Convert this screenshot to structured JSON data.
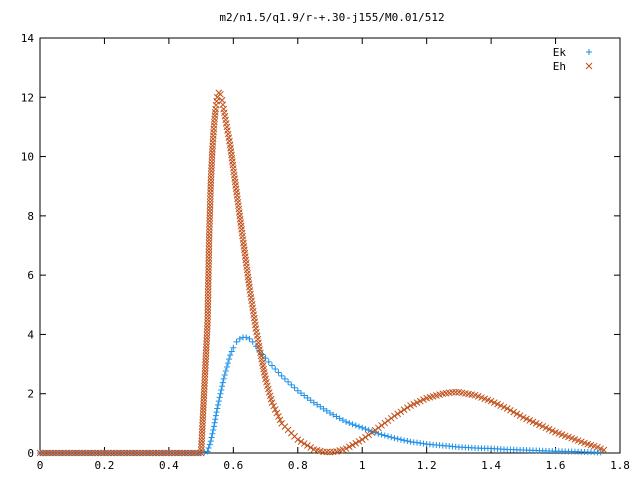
{
  "chart_data": {
    "type": "scatter",
    "title": "m2/n1.5/q1.9/r-+.30-j155/M0.01/512",
    "xlabel": "",
    "ylabel": "",
    "xlim": [
      0,
      1.8
    ],
    "ylim": [
      0,
      14
    ],
    "xticks": [
      0,
      0.2,
      0.4,
      0.6,
      0.8,
      1,
      1.2,
      1.4,
      1.6,
      1.8
    ],
    "xtick_labels": [
      "0",
      "0.2",
      "0.4",
      "0.6",
      "0.8",
      "1",
      "1.2",
      "1.4",
      "1.6",
      "1.8"
    ],
    "yticks": [
      0,
      2,
      4,
      6,
      8,
      10,
      12,
      14
    ],
    "ytick_labels": [
      "0",
      "2",
      "4",
      "6",
      "8",
      "10",
      "12",
      "14"
    ],
    "grid": false,
    "legend_position": "top-right",
    "series": [
      {
        "name": "Ek",
        "marker": "+",
        "color": "#1e90e8",
        "points": [
          [
            0.0,
            0
          ],
          [
            0.05,
            0
          ],
          [
            0.1,
            0
          ],
          [
            0.15,
            0
          ],
          [
            0.2,
            0
          ],
          [
            0.25,
            0
          ],
          [
            0.3,
            0
          ],
          [
            0.35,
            0
          ],
          [
            0.4,
            0
          ],
          [
            0.45,
            0
          ],
          [
            0.5,
            0
          ],
          [
            0.52,
            0.05
          ],
          [
            0.53,
            0.4
          ],
          [
            0.54,
            0.9
          ],
          [
            0.55,
            1.5
          ],
          [
            0.56,
            2.0
          ],
          [
            0.57,
            2.5
          ],
          [
            0.58,
            2.9
          ],
          [
            0.59,
            3.3
          ],
          [
            0.6,
            3.55
          ],
          [
            0.61,
            3.75
          ],
          [
            0.62,
            3.85
          ],
          [
            0.63,
            3.9
          ],
          [
            0.64,
            3.9
          ],
          [
            0.65,
            3.85
          ],
          [
            0.66,
            3.75
          ],
          [
            0.67,
            3.6
          ],
          [
            0.68,
            3.45
          ],
          [
            0.7,
            3.2
          ],
          [
            0.72,
            2.95
          ],
          [
            0.75,
            2.6
          ],
          [
            0.8,
            2.1
          ],
          [
            0.85,
            1.7
          ],
          [
            0.9,
            1.35
          ],
          [
            0.95,
            1.05
          ],
          [
            1.0,
            0.85
          ],
          [
            1.05,
            0.65
          ],
          [
            1.1,
            0.5
          ],
          [
            1.15,
            0.38
          ],
          [
            1.2,
            0.3
          ],
          [
            1.25,
            0.25
          ],
          [
            1.3,
            0.2
          ],
          [
            1.35,
            0.17
          ],
          [
            1.4,
            0.15
          ],
          [
            1.45,
            0.12
          ],
          [
            1.5,
            0.1
          ],
          [
            1.55,
            0.08
          ],
          [
            1.6,
            0.06
          ],
          [
            1.65,
            0.05
          ],
          [
            1.7,
            0.03
          ],
          [
            1.74,
            0.02
          ]
        ]
      },
      {
        "name": "Eh",
        "marker": "x",
        "color": "#c0501a",
        "points": [
          [
            0.0,
            0
          ],
          [
            0.05,
            0
          ],
          [
            0.1,
            0
          ],
          [
            0.15,
            0
          ],
          [
            0.2,
            0
          ],
          [
            0.25,
            0
          ],
          [
            0.3,
            0
          ],
          [
            0.35,
            0
          ],
          [
            0.4,
            0
          ],
          [
            0.45,
            0
          ],
          [
            0.5,
            0
          ],
          [
            0.52,
            4.4
          ],
          [
            0.525,
            7.3
          ],
          [
            0.53,
            9.1
          ],
          [
            0.535,
            10.25
          ],
          [
            0.54,
            11.05
          ],
          [
            0.545,
            11.6
          ],
          [
            0.55,
            12.0
          ],
          [
            0.555,
            12.15
          ],
          [
            0.56,
            12.1
          ],
          [
            0.565,
            11.9
          ],
          [
            0.57,
            11.6
          ],
          [
            0.58,
            11.0
          ],
          [
            0.59,
            10.4
          ],
          [
            0.6,
            9.6
          ],
          [
            0.61,
            8.8
          ],
          [
            0.62,
            8.0
          ],
          [
            0.63,
            7.2
          ],
          [
            0.64,
            6.4
          ],
          [
            0.65,
            5.6
          ],
          [
            0.66,
            4.9
          ],
          [
            0.67,
            4.2
          ],
          [
            0.68,
            3.6
          ],
          [
            0.7,
            2.5
          ],
          [
            0.72,
            1.7
          ],
          [
            0.75,
            1.0
          ],
          [
            0.8,
            0.45
          ],
          [
            0.85,
            0.12
          ],
          [
            0.88,
            0.04
          ],
          [
            0.9,
            0.03
          ],
          [
            0.92,
            0.05
          ],
          [
            0.95,
            0.15
          ],
          [
            1.0,
            0.45
          ],
          [
            1.05,
            0.85
          ],
          [
            1.1,
            1.25
          ],
          [
            1.15,
            1.6
          ],
          [
            1.2,
            1.85
          ],
          [
            1.25,
            2.0
          ],
          [
            1.28,
            2.05
          ],
          [
            1.3,
            2.05
          ],
          [
            1.35,
            1.95
          ],
          [
            1.4,
            1.75
          ],
          [
            1.45,
            1.5
          ],
          [
            1.5,
            1.2
          ],
          [
            1.55,
            0.95
          ],
          [
            1.6,
            0.7
          ],
          [
            1.65,
            0.5
          ],
          [
            1.7,
            0.3
          ],
          [
            1.73,
            0.2
          ],
          [
            1.75,
            0.1
          ]
        ]
      }
    ]
  }
}
